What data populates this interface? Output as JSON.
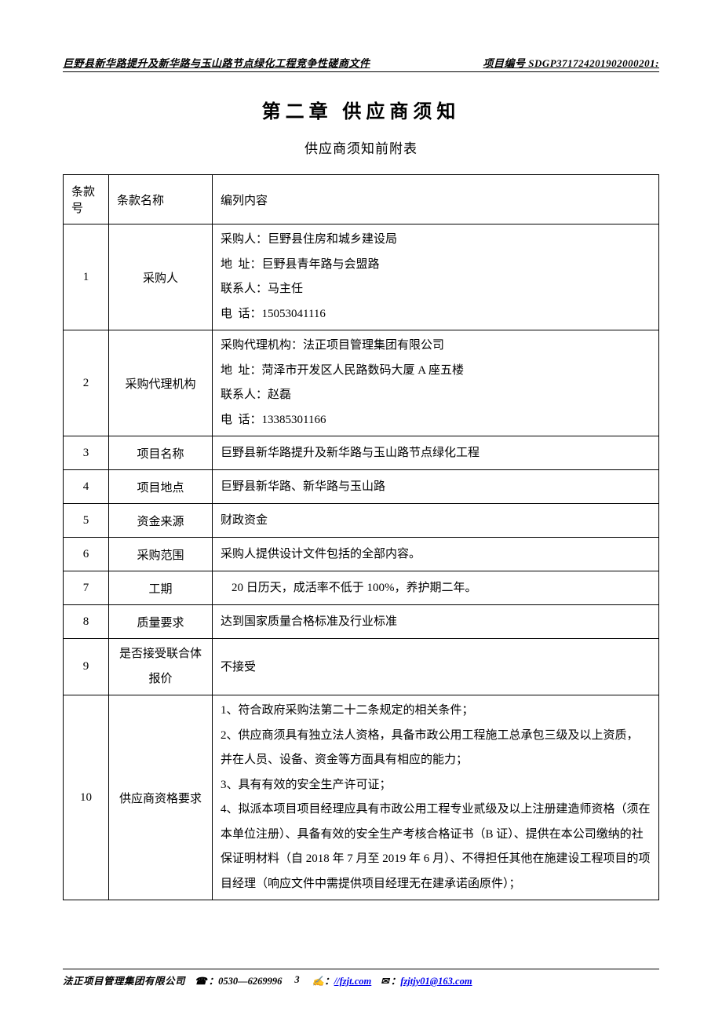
{
  "header": {
    "left": "巨野县新华路提升及新华路与玉山路节点绿化工程竞争性磋商文件",
    "right": "项目编号 SDGP371724201902000201:"
  },
  "chapter_title": "第二章  供应商须知",
  "subtitle": "供应商须知前附表",
  "table": {
    "headers": {
      "col1": "条款号",
      "col2": "条款名称",
      "col3": "编列内容"
    },
    "rows": [
      {
        "num": "1",
        "name": "采购人",
        "content": "采购人：巨野县住房和城乡建设局\n地  址：巨野县青年路与会盟路\n联系人：马主任\n电  话：15053041116"
      },
      {
        "num": "2",
        "name": "采购代理机构",
        "content": "采购代理机构：法正项目管理集团有限公司\n地  址：菏泽市开发区人民路数码大厦 A 座五楼\n联系人：赵磊\n电  话：13385301166"
      },
      {
        "num": "3",
        "name": "项目名称",
        "content": "巨野县新华路提升及新华路与玉山路节点绿化工程"
      },
      {
        "num": "4",
        "name": "项目地点",
        "content": "巨野县新华路、新华路与玉山路"
      },
      {
        "num": "5",
        "name": "资金来源",
        "content": "财政资金"
      },
      {
        "num": "6",
        "name": "采购范围",
        "content": "采购人提供设计文件包括的全部内容。"
      },
      {
        "num": "7",
        "name": "工期",
        "content": "20 日历天，成活率不低于 100%，养护期二年。"
      },
      {
        "num": "8",
        "name": "质量要求",
        "content": "达到国家质量合格标准及行业标准"
      },
      {
        "num": "9",
        "name": "是否接受联合体报价",
        "content": "不接受"
      },
      {
        "num": "10",
        "name": "供应商资格要求",
        "content": "1、符合政府采购法第二十二条规定的相关条件；\n2、供应商须具有独立法人资格，具备市政公用工程施工总承包三级及以上资质， 并在人员、设备、资金等方面具有相应的能力；\n3、具有有效的安全生产许可证；\n4、拟派本项目项目经理应具有市政公用工程专业贰级及以上注册建造师资格（须在本单位注册）、具备有效的安全生产考核合格证书（B 证）、提供在本公司缴纳的社保证明材料（自 2018 年 7 月至 2019 年 6 月）、不得担任其他在施建设工程项目的项目经理（响应文件中需提供项目经理无在建承诺函原件）；"
      }
    ]
  },
  "footer": {
    "company": "法正项目管理集团有限公司",
    "phone": "：0530—6269996",
    "page": "3",
    "web_prefix": "：",
    "web_link": "//fzjt.com",
    "mail_prefix": "：",
    "mail": "fzjtjy01@163.com"
  }
}
